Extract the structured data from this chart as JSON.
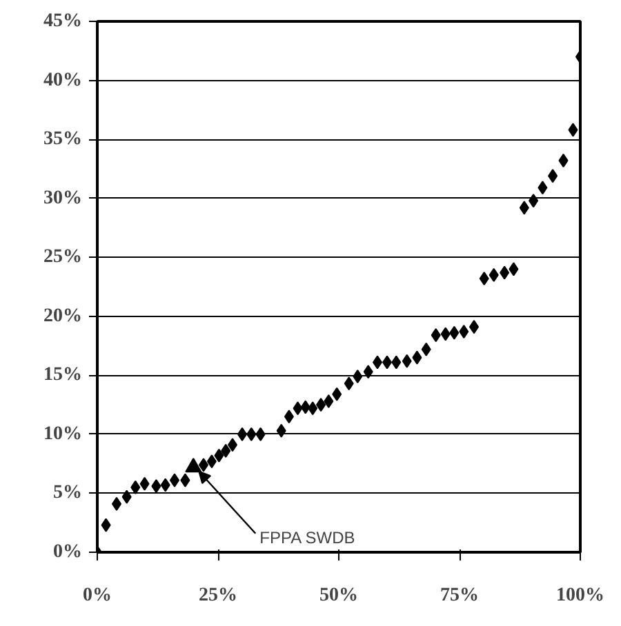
{
  "chart_data": {
    "type": "scatter",
    "marker": "diamond",
    "grid": "y",
    "xlim": [
      0,
      100
    ],
    "ylim": [
      0,
      45
    ],
    "xticks": [
      {
        "value": 0,
        "label": "0%"
      },
      {
        "value": 25,
        "label": "25%"
      },
      {
        "value": 50,
        "label": "50%"
      },
      {
        "value": 75,
        "label": "75%"
      },
      {
        "value": 100,
        "label": "100%"
      }
    ],
    "yticks": [
      {
        "value": 0,
        "label": "0%"
      },
      {
        "value": 5,
        "label": "5%"
      },
      {
        "value": 10,
        "label": "10%"
      },
      {
        "value": 15,
        "label": "15%"
      },
      {
        "value": 20,
        "label": "20%"
      },
      {
        "value": 25,
        "label": "25%"
      },
      {
        "value": 30,
        "label": "30%"
      },
      {
        "value": 35,
        "label": "35%"
      },
      {
        "value": 40,
        "label": "40%"
      },
      {
        "value": 45,
        "label": "45%"
      }
    ],
    "series": [
      {
        "color": "#000000",
        "x": [
          0,
          1.8,
          4.0,
          6.1,
          7.9,
          9.8,
          12.2,
          14.1,
          16.0,
          18.2,
          22.0,
          23.7,
          25.2,
          26.6,
          28.0,
          30.0,
          31.9,
          33.8,
          38.1,
          39.7,
          41.5,
          43.1,
          44.6,
          46.3,
          47.9,
          49.6,
          52.1,
          53.9,
          56.1,
          58.0,
          60.0,
          61.9,
          64.1,
          66.2,
          68.1,
          70.1,
          72.1,
          73.9,
          75.9,
          78.0,
          80.1,
          82.1,
          84.3,
          86.2,
          88.4,
          90.3,
          92.2,
          94.3,
          96.5,
          98.5,
          100
        ],
        "values": [
          0,
          2.3,
          4.1,
          4.7,
          5.5,
          5.8,
          5.6,
          5.7,
          6.1,
          6.1,
          7.4,
          7.7,
          8.2,
          8.6,
          9.1,
          10.0,
          10.0,
          10.0,
          10.3,
          11.5,
          12.2,
          12.3,
          12.2,
          12.5,
          12.8,
          13.4,
          14.3,
          14.9,
          15.3,
          16.1,
          16.1,
          16.1,
          16.2,
          16.5,
          17.2,
          18.4,
          18.5,
          18.6,
          18.7,
          19.1,
          23.2,
          23.5,
          23.7,
          24.0,
          29.2,
          29.8,
          30.9,
          31.9,
          33.2,
          35.8,
          42.0
        ]
      },
      {
        "color": "#000000",
        "marker": "triangle",
        "x": [
          19.9
        ],
        "values": [
          7.2
        ]
      }
    ],
    "annotations": [
      {
        "text": "FPPA SWDB",
        "x": 19.9,
        "y": 7.2
      }
    ]
  }
}
